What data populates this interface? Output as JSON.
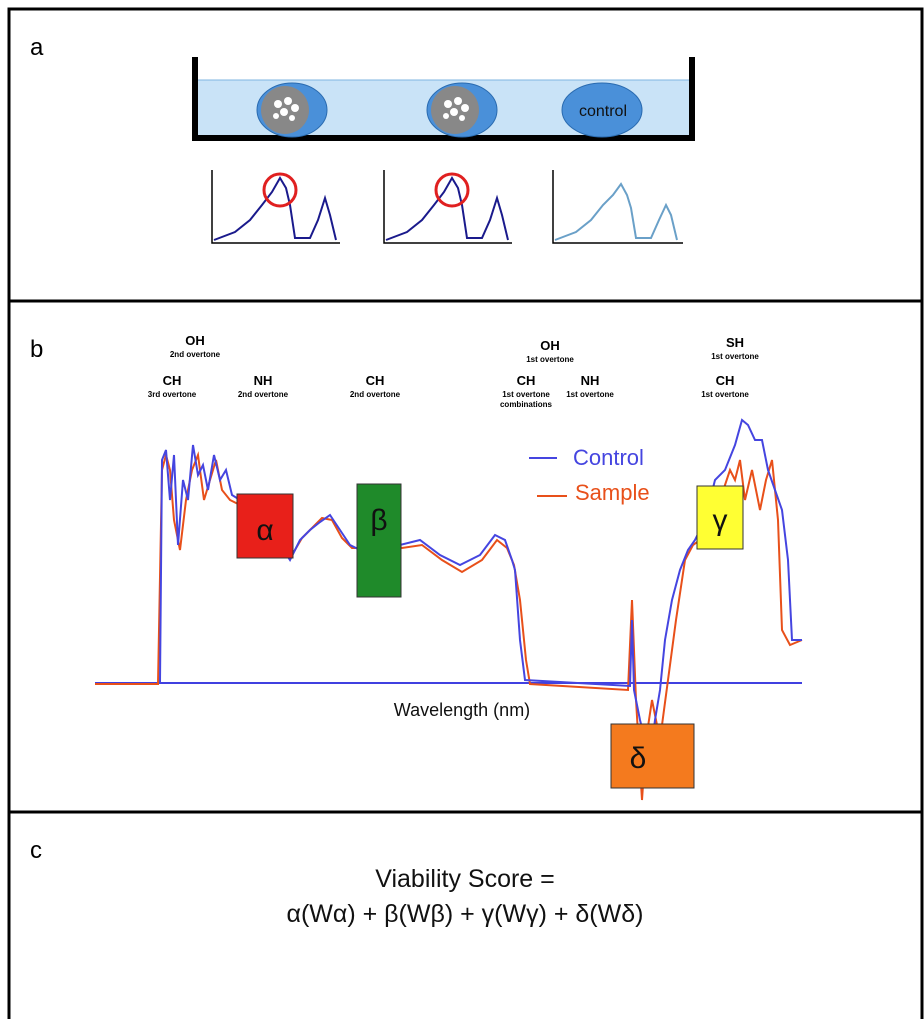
{
  "panels": {
    "a": "a",
    "b": "b",
    "c": "c"
  },
  "panel_a": {
    "control_label": "control"
  },
  "panel_b": {
    "bands": [
      {
        "group": "OH",
        "ordinal": "2nd",
        "note": "overtone"
      },
      {
        "group": "CH",
        "ordinal": "3rd",
        "note": "overtone"
      },
      {
        "group": "NH",
        "ordinal": "2nd",
        "note": "overtone"
      },
      {
        "group": "CH",
        "ordinal": "2nd",
        "note": "overtone"
      },
      {
        "group": "OH",
        "ordinal": "1st",
        "note": "overtone"
      },
      {
        "group": "CH",
        "ordinal": "1st",
        "note": "overtone",
        "extra": "combinations"
      },
      {
        "group": "NH",
        "ordinal": "1st",
        "note": "overtone"
      },
      {
        "group": "SH",
        "ordinal": "1st",
        "note": "overtone"
      },
      {
        "group": "CH",
        "ordinal": "1st",
        "note": "overtone"
      }
    ],
    "legend": [
      "Control",
      "Sample"
    ],
    "regions": [
      "α",
      "β",
      "γ",
      "δ"
    ],
    "x_axis_label": "Wavelength (nm)"
  },
  "panel_c": {
    "line1": "Viability Score =",
    "line2": "α(Wα) + β(Wβ) + γ(Wγ) + δ(Wδ)"
  }
}
